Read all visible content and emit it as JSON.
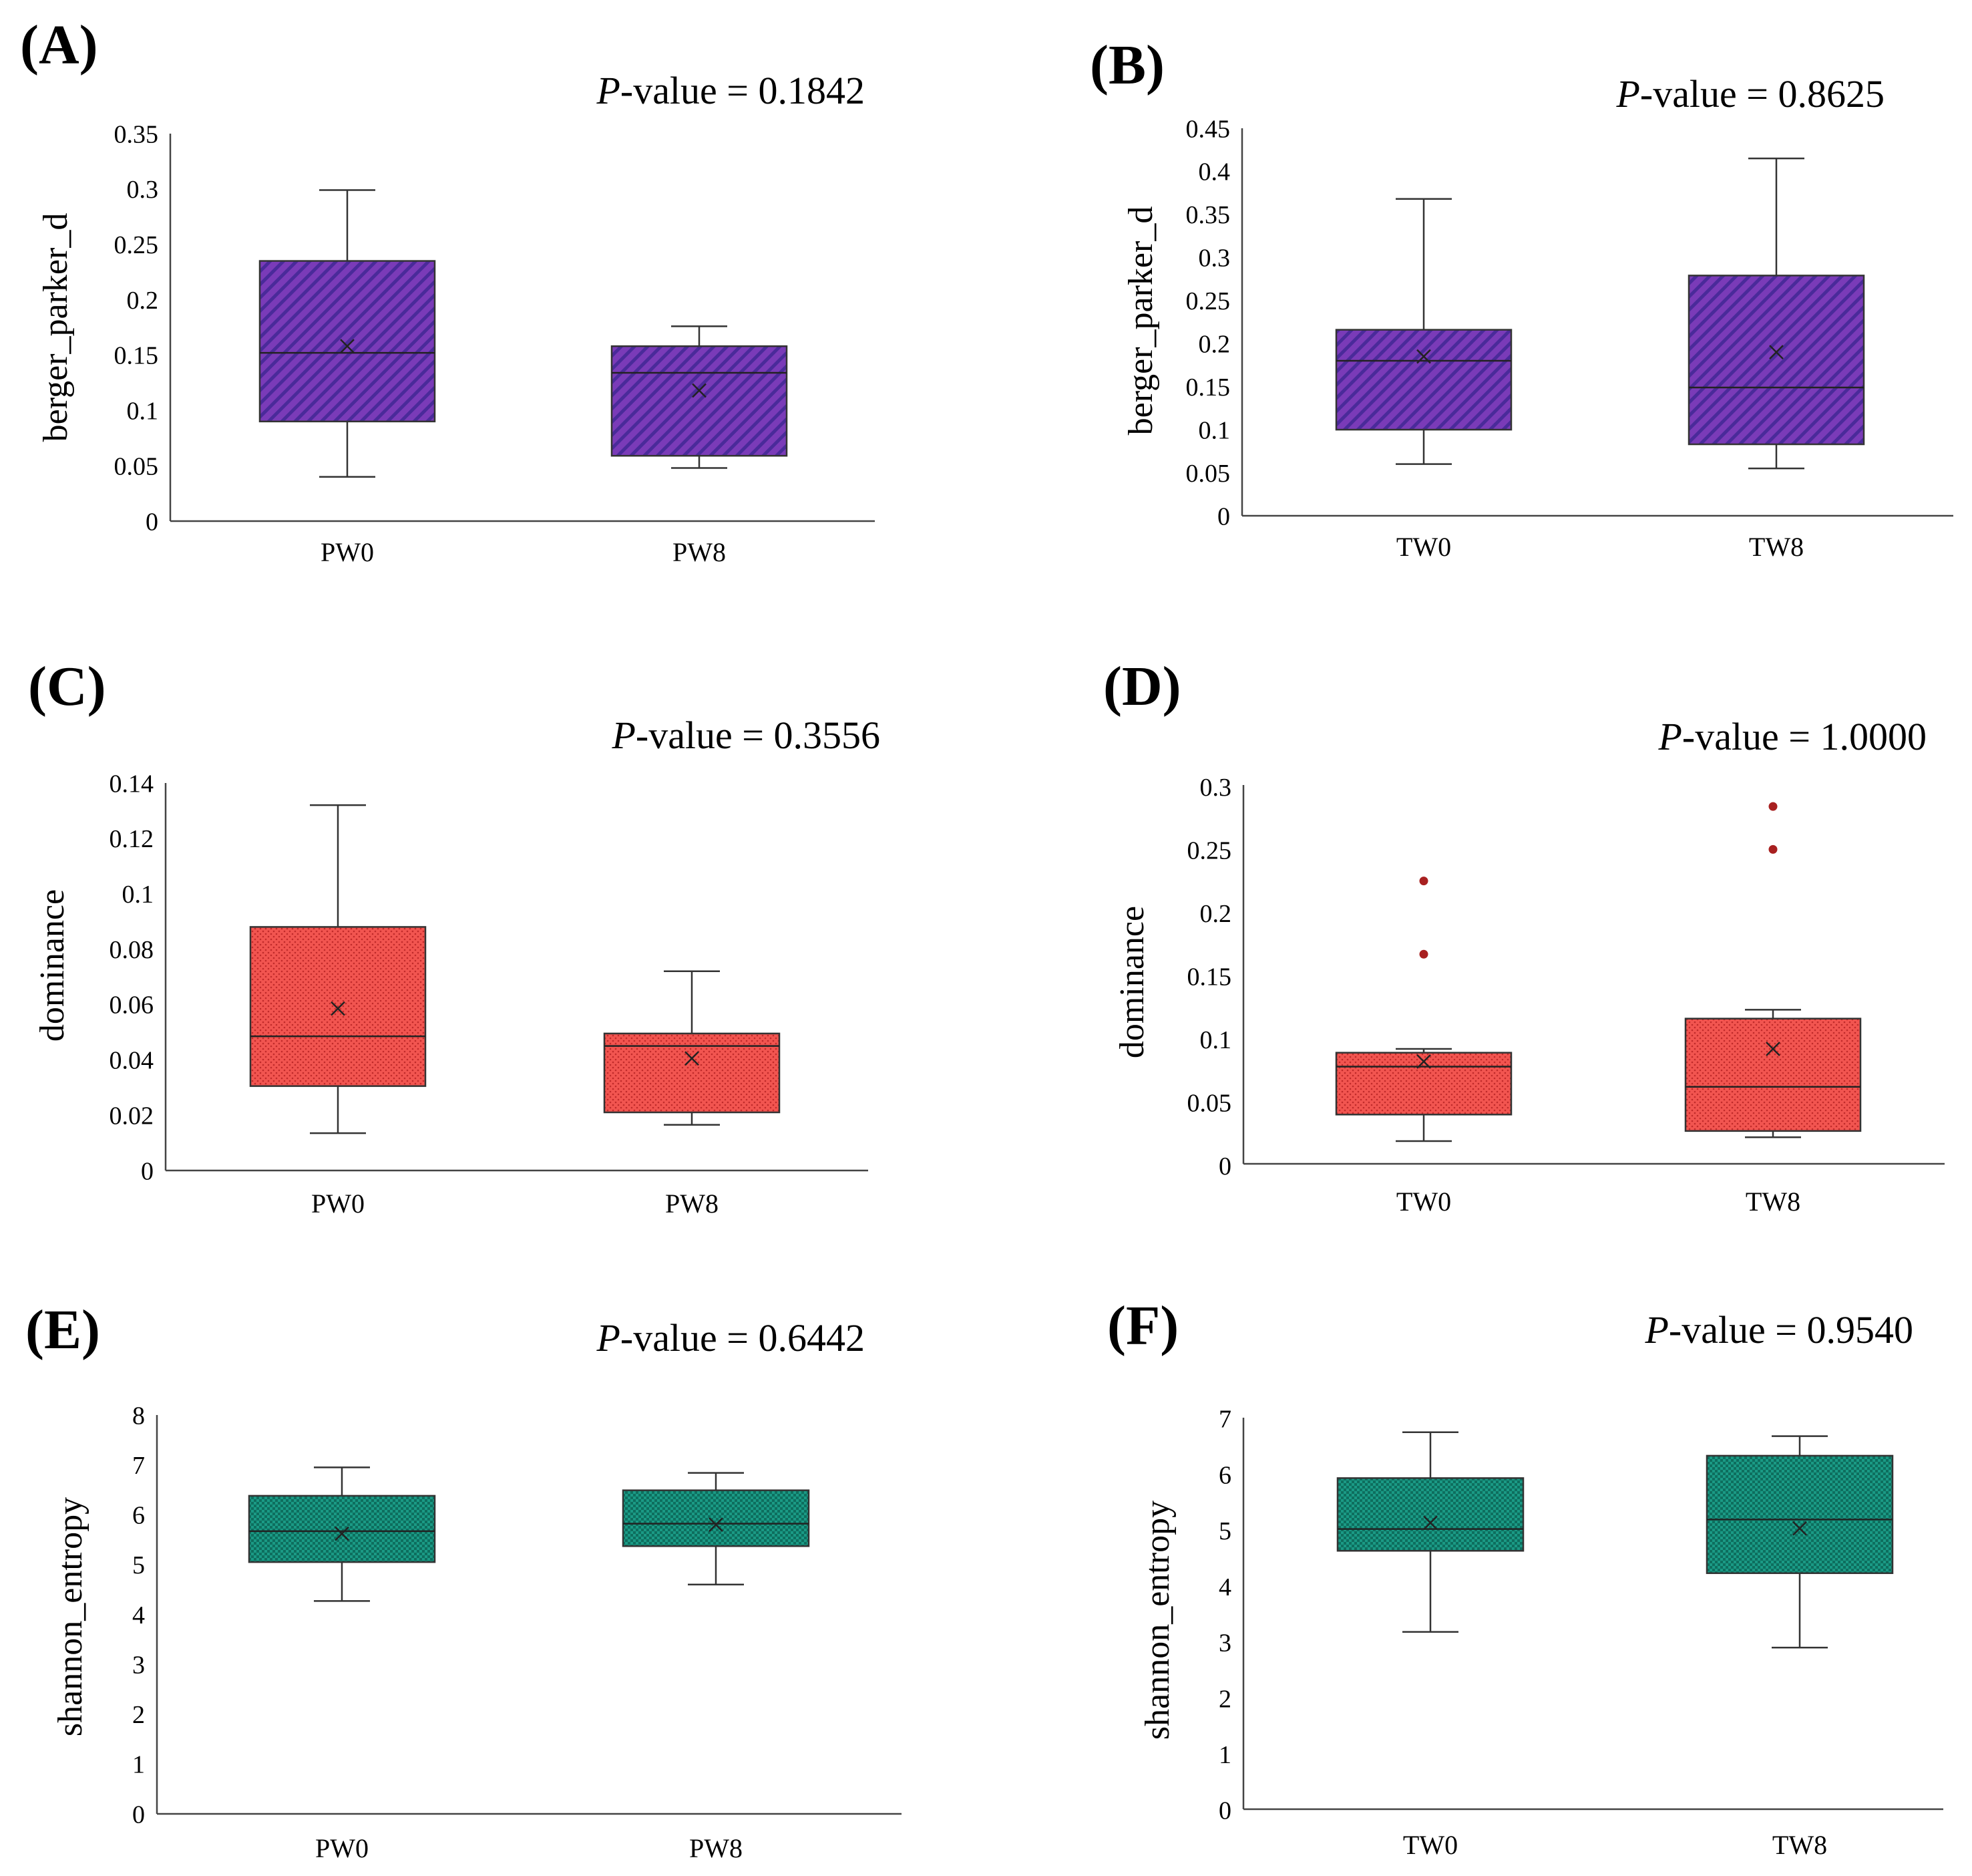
{
  "pvalue_prefix": "P",
  "pvalue_suffix": "-value = ",
  "colors": {
    "purple": "#7a3bb8",
    "purple_stripe": "#4a2a9a",
    "red": "#f25550",
    "red_dot": "#c02a2a",
    "teal": "#1a9a85",
    "teal_dot": "#0e6e5e",
    "outlier": "#a82020"
  },
  "chart_data": [
    {
      "id": "A",
      "label": "(A)",
      "type": "box",
      "pvalue": "0.1842",
      "ylabel": "berger_parker_d",
      "ylim": [
        0,
        0.35
      ],
      "yticks": [
        "0",
        "0.05",
        "0.1",
        "0.15",
        "0.2",
        "0.25",
        "0.3",
        "0.35"
      ],
      "tickvals": [
        0,
        0.05,
        0.1,
        0.15,
        0.2,
        0.25,
        0.3,
        0.35
      ],
      "fill": "purple",
      "pattern": "stripe",
      "categories": [
        "PW0",
        "PW8"
      ],
      "boxes": [
        {
          "category": "PW0",
          "min": 0.04,
          "q1": 0.09,
          "median": 0.152,
          "q3": 0.235,
          "max": 0.299,
          "mean": 0.158,
          "outliers": []
        },
        {
          "category": "PW8",
          "min": 0.048,
          "q1": 0.059,
          "median": 0.134,
          "q3": 0.158,
          "max": 0.176,
          "mean": 0.118,
          "outliers": []
        }
      ]
    },
    {
      "id": "B",
      "label": "(B)",
      "type": "box",
      "pvalue": "0.8625",
      "ylabel": "berger_parker_d",
      "ylim": [
        0,
        0.45
      ],
      "yticks": [
        "0",
        "0.05",
        "0.1",
        "0.15",
        "0.2",
        "0.25",
        "0.3",
        "0.35",
        "0.4",
        "0.45"
      ],
      "tickvals": [
        0,
        0.05,
        0.1,
        0.15,
        0.2,
        0.25,
        0.3,
        0.35,
        0.4,
        0.45
      ],
      "fill": "purple",
      "pattern": "stripe",
      "categories": [
        "TW0",
        "TW8"
      ],
      "boxes": [
        {
          "category": "TW0",
          "min": 0.06,
          "q1": 0.1,
          "median": 0.18,
          "q3": 0.216,
          "max": 0.368,
          "mean": 0.185,
          "outliers": []
        },
        {
          "category": "TW8",
          "min": 0.055,
          "q1": 0.083,
          "median": 0.149,
          "q3": 0.279,
          "max": 0.415,
          "mean": 0.19,
          "outliers": []
        }
      ]
    },
    {
      "id": "C",
      "label": "(C)",
      "type": "box",
      "pvalue": "0.3556",
      "ylabel": "dominance",
      "ylim": [
        0,
        0.14
      ],
      "yticks": [
        "0",
        "0.02",
        "0.04",
        "0.06",
        "0.08",
        "0.1",
        "0.12",
        "0.14"
      ],
      "tickvals": [
        0,
        0.02,
        0.04,
        0.06,
        0.08,
        0.1,
        0.12,
        0.14
      ],
      "fill": "red",
      "pattern": "dots",
      "categories": [
        "PW0",
        "PW8"
      ],
      "boxes": [
        {
          "category": "PW0",
          "min": 0.0135,
          "q1": 0.0305,
          "median": 0.0485,
          "q3": 0.088,
          "max": 0.132,
          "mean": 0.0585,
          "outliers": []
        },
        {
          "category": "PW8",
          "min": 0.0165,
          "q1": 0.021,
          "median": 0.045,
          "q3": 0.0495,
          "max": 0.072,
          "mean": 0.0405,
          "outliers": []
        }
      ]
    },
    {
      "id": "D",
      "label": "(D)",
      "type": "box",
      "pvalue": "1.0000",
      "ylabel": "dominance",
      "ylim": [
        0,
        0.3
      ],
      "yticks": [
        "0",
        "0.05",
        "0.1",
        "0.15",
        "0.2",
        "0.25",
        "0.3"
      ],
      "tickvals": [
        0,
        0.05,
        0.1,
        0.15,
        0.2,
        0.25,
        0.3
      ],
      "fill": "red",
      "pattern": "dots",
      "categories": [
        "TW0",
        "TW8"
      ],
      "boxes": [
        {
          "category": "TW0",
          "min": 0.018,
          "q1": 0.039,
          "median": 0.077,
          "q3": 0.088,
          "max": 0.091,
          "mean": 0.081,
          "outliers": [
            0.166,
            0.224
          ]
        },
        {
          "category": "TW8",
          "min": 0.021,
          "q1": 0.026,
          "median": 0.061,
          "q3": 0.115,
          "max": 0.122,
          "mean": 0.091,
          "outliers": [
            0.249,
            0.283
          ]
        }
      ]
    },
    {
      "id": "E",
      "label": "(E)",
      "type": "box",
      "pvalue": "0.6442",
      "ylabel": "shannon_entropy",
      "ylim": [
        0,
        8
      ],
      "yticks": [
        "0",
        "1",
        "2",
        "3",
        "4",
        "5",
        "6",
        "7",
        "8"
      ],
      "tickvals": [
        0,
        1,
        2,
        3,
        4,
        5,
        6,
        7,
        8
      ],
      "fill": "teal",
      "pattern": "checks",
      "categories": [
        "PW0",
        "PW8"
      ],
      "boxes": [
        {
          "category": "PW0",
          "min": 4.27,
          "q1": 5.05,
          "median": 5.67,
          "q3": 6.38,
          "max": 6.95,
          "mean": 5.62,
          "outliers": []
        },
        {
          "category": "PW8",
          "min": 4.6,
          "q1": 5.37,
          "median": 5.82,
          "q3": 6.49,
          "max": 6.84,
          "mean": 5.8,
          "outliers": []
        }
      ]
    },
    {
      "id": "F",
      "label": "(F)",
      "type": "box",
      "pvalue": "0.9540",
      "ylabel": "shannon_entropy",
      "ylim": [
        0,
        7
      ],
      "yticks": [
        "0",
        "1",
        "2",
        "3",
        "4",
        "5",
        "6",
        "7"
      ],
      "tickvals": [
        0,
        1,
        2,
        3,
        4,
        5,
        6,
        7
      ],
      "fill": "teal",
      "pattern": "checks",
      "categories": [
        "TW0",
        "TW8"
      ],
      "boxes": [
        {
          "category": "TW0",
          "min": 3.17,
          "q1": 4.62,
          "median": 5.01,
          "q3": 5.92,
          "max": 6.74,
          "mean": 5.12,
          "outliers": []
        },
        {
          "category": "TW8",
          "min": 2.89,
          "q1": 4.22,
          "median": 5.18,
          "q3": 6.32,
          "max": 6.67,
          "mean": 5.02,
          "outliers": []
        }
      ]
    }
  ]
}
